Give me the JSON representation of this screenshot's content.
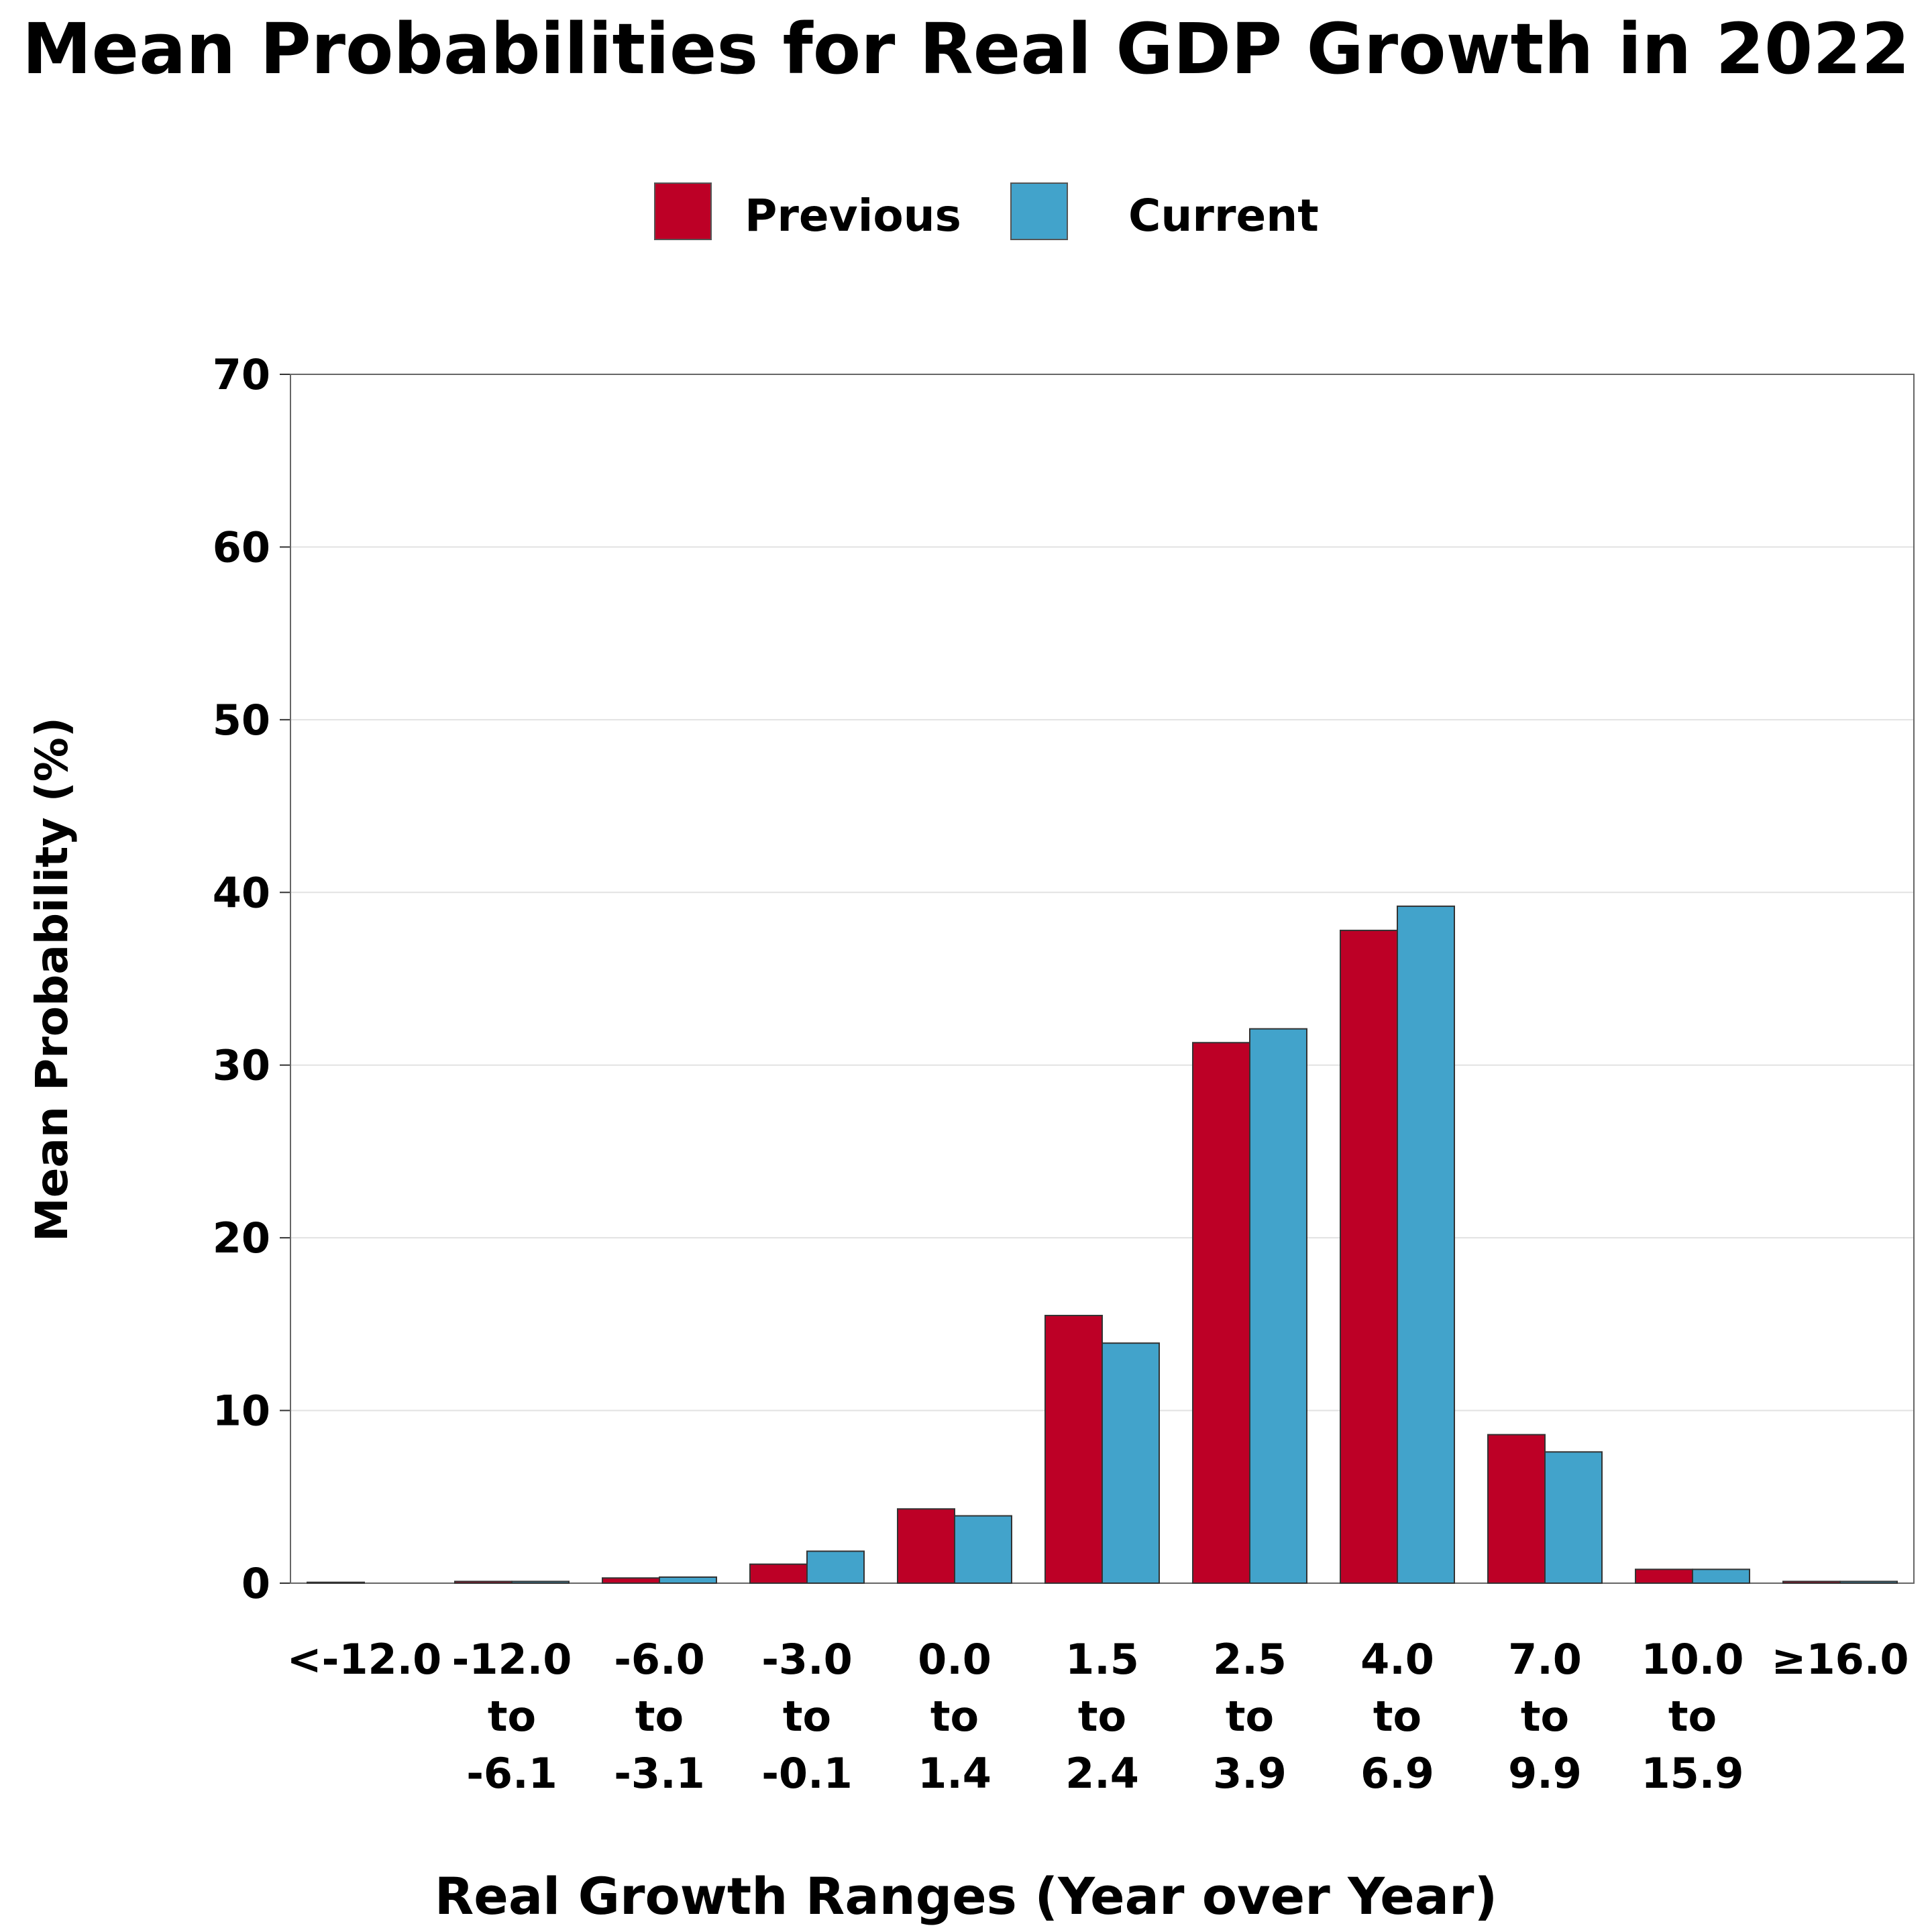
{
  "chart_data": {
    "type": "bar",
    "title": "Mean Probabilities for Real GDP Growth in 2022",
    "xlabel": "Real Growth Ranges (Year over Year)",
    "ylabel": "Mean Probability (%)",
    "ylim": [
      0,
      70
    ],
    "yticks": [
      "0",
      "10",
      "20",
      "30",
      "40",
      "50",
      "60",
      "70"
    ],
    "grid": true,
    "legend_position": "top-center",
    "categories": [
      [
        "<-12.0"
      ],
      [
        "-12.0",
        "to",
        "-6.1"
      ],
      [
        "-6.0",
        "to",
        "-3.1"
      ],
      [
        "-3.0",
        "to",
        "-0.1"
      ],
      [
        "0.0",
        "to",
        "1.4"
      ],
      [
        "1.5",
        "to",
        "2.4"
      ],
      [
        "2.5",
        "to",
        "3.9"
      ],
      [
        "4.0",
        "to",
        "6.9"
      ],
      [
        "7.0",
        "to",
        "9.9"
      ],
      [
        "10.0",
        "to",
        "15.9"
      ],
      [
        "≥16.0"
      ]
    ],
    "series": [
      {
        "name": "Previous",
        "color": "#bd0026",
        "values": [
          0.05,
          0.1,
          0.3,
          1.1,
          4.3,
          15.5,
          31.3,
          37.8,
          8.6,
          0.8,
          0.1
        ]
      },
      {
        "name": "Current",
        "color": "#42a3cb",
        "values": [
          0.0,
          0.1,
          0.35,
          1.85,
          3.9,
          13.9,
          32.1,
          39.2,
          7.6,
          0.8,
          0.1
        ]
      }
    ]
  }
}
